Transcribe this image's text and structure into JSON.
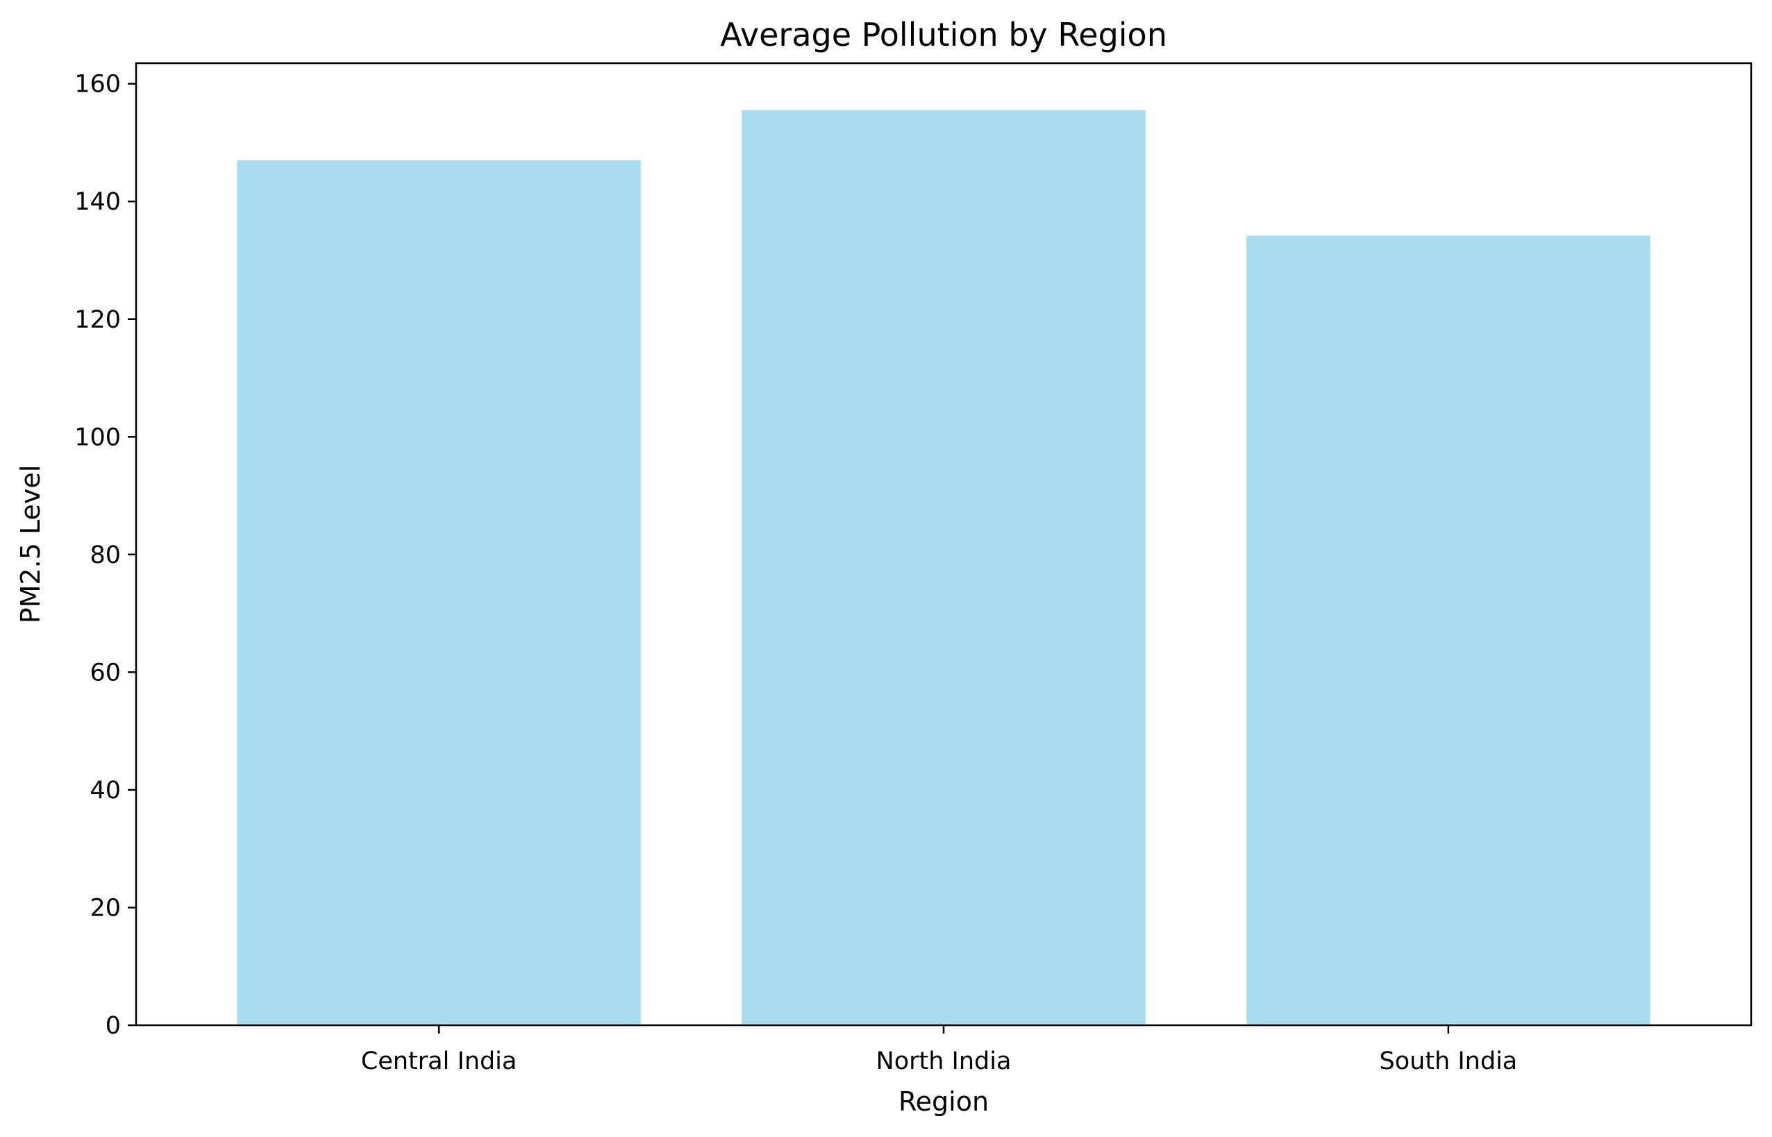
{
  "chart_data": {
    "type": "bar",
    "title": "Average Pollution by Region",
    "xlabel": "Region",
    "ylabel": "PM2.5 Level",
    "categories": [
      "Central India",
      "North India",
      "South India"
    ],
    "values": [
      147.0,
      155.5,
      134.2
    ],
    "ylim": [
      0,
      163.5
    ],
    "yticks": [
      0,
      20,
      40,
      60,
      80,
      100,
      120,
      140,
      160
    ],
    "bar_color": "#a9dbee",
    "grid": false,
    "legend": "none"
  }
}
